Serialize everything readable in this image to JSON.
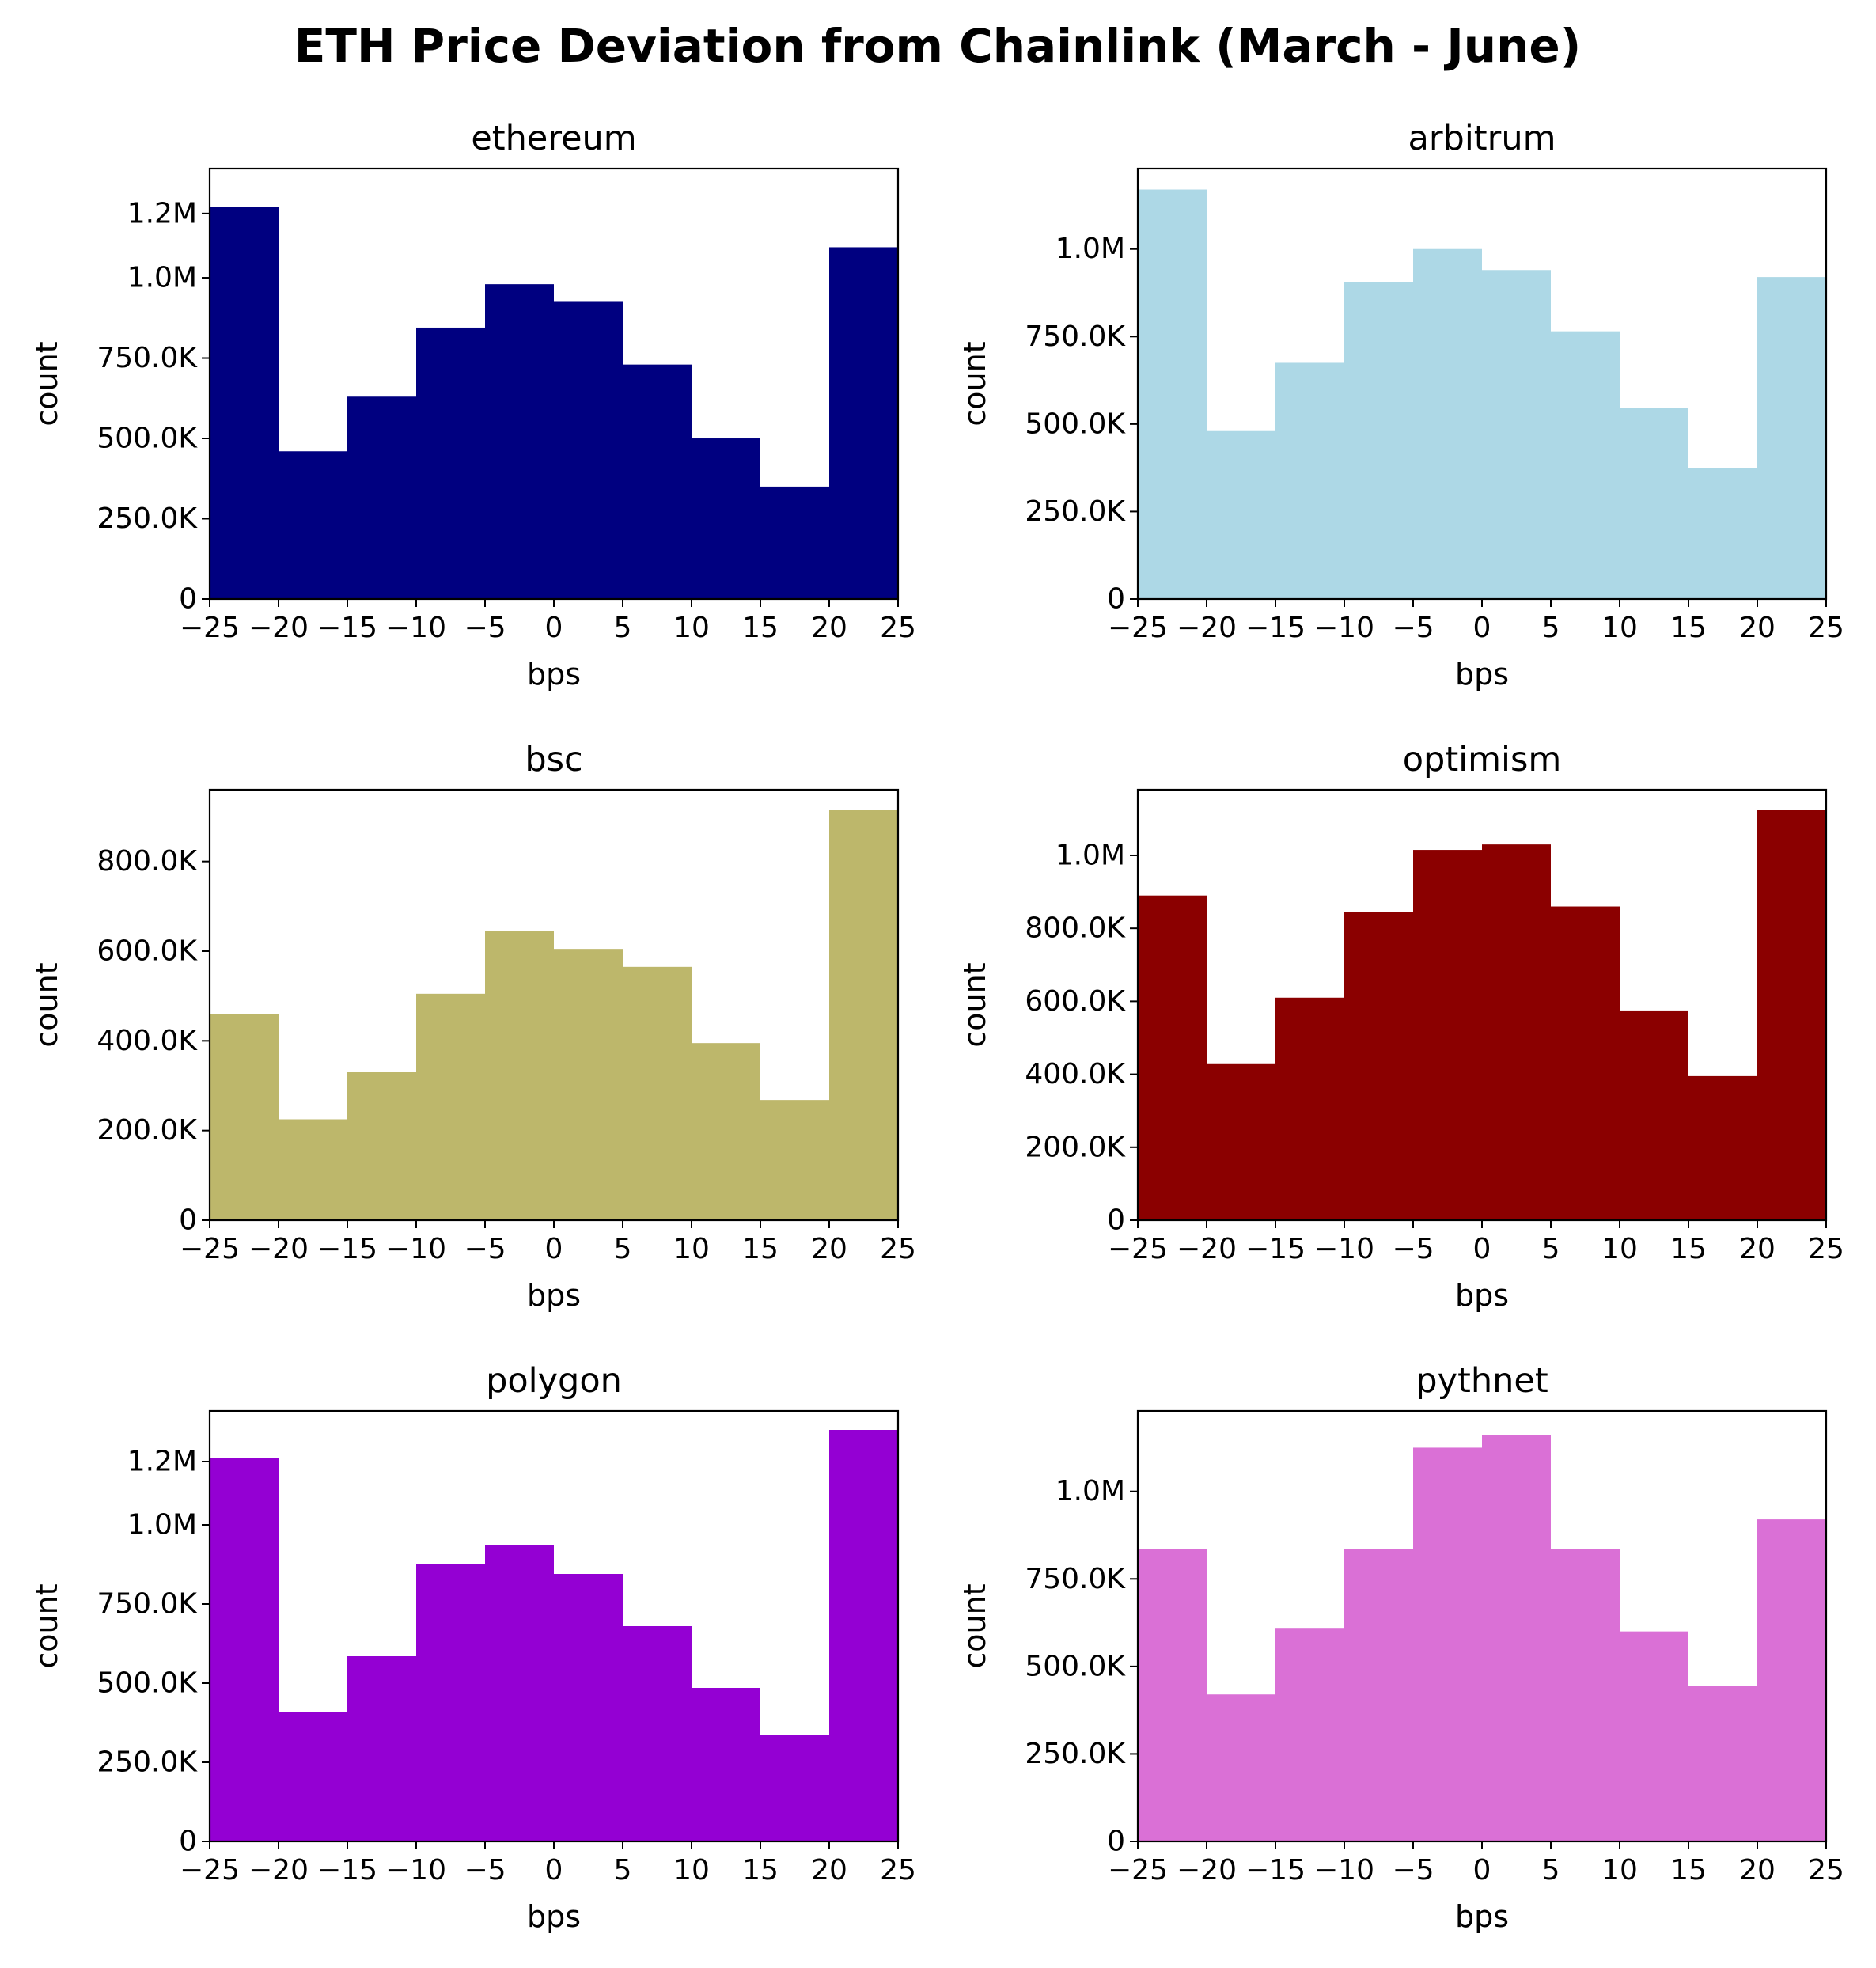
{
  "figure": {
    "title": "ETH Price Deviation from Chainlink (March - June)"
  },
  "chart_data": [
    {
      "type": "bar",
      "title": "ethereum",
      "xlabel": "bps",
      "ylabel": "count",
      "color": "#000080",
      "bin_edges": [
        -25,
        -20,
        -15,
        -10,
        -5,
        0,
        5,
        10,
        15,
        20,
        25
      ],
      "values": [
        1220000,
        460000,
        630000,
        845000,
        980000,
        925000,
        730000,
        500000,
        350000,
        1095000
      ],
      "xlim": [
        -25,
        25
      ],
      "ylim": [
        0,
        1340000
      ],
      "xticks": [
        -25,
        -20,
        -15,
        -10,
        -5,
        0,
        5,
        10,
        15,
        20,
        25
      ],
      "xtick_labels": [
        "−25",
        "−20",
        "−15",
        "−10",
        "−5",
        "0",
        "5",
        "10",
        "15",
        "20",
        "25"
      ],
      "yticks": [
        0,
        250000,
        500000,
        750000,
        1000000,
        1200000
      ],
      "ytick_labels": [
        "0",
        "250.0K",
        "500.0K",
        "750.0K",
        "1.0M",
        "1.2M"
      ]
    },
    {
      "type": "bar",
      "title": "arbitrum",
      "xlabel": "bps",
      "ylabel": "count",
      "color": "#add8e6",
      "bin_edges": [
        -25,
        -20,
        -15,
        -10,
        -5,
        0,
        5,
        10,
        15,
        20,
        25
      ],
      "values": [
        1170000,
        480000,
        675000,
        905000,
        1000000,
        940000,
        765000,
        545000,
        375000,
        920000
      ],
      "xlim": [
        -25,
        25
      ],
      "ylim": [
        0,
        1230000
      ],
      "xticks": [
        -25,
        -20,
        -15,
        -10,
        -5,
        0,
        5,
        10,
        15,
        20,
        25
      ],
      "xtick_labels": [
        "−25",
        "−20",
        "−15",
        "−10",
        "−5",
        "0",
        "5",
        "10",
        "15",
        "20",
        "25"
      ],
      "yticks": [
        0,
        250000,
        500000,
        750000,
        1000000
      ],
      "ytick_labels": [
        "0",
        "250.0K",
        "500.0K",
        "750.0K",
        "1.0M"
      ]
    },
    {
      "type": "bar",
      "title": "bsc",
      "xlabel": "bps",
      "ylabel": "count",
      "color": "#bdb76b",
      "bin_edges": [
        -25,
        -20,
        -15,
        -10,
        -5,
        0,
        5,
        10,
        15,
        20,
        25
      ],
      "values": [
        460000,
        225000,
        330000,
        505000,
        645000,
        605000,
        565000,
        395000,
        268000,
        915000
      ],
      "xlim": [
        -25,
        25
      ],
      "ylim": [
        0,
        960000
      ],
      "xticks": [
        -25,
        -20,
        -15,
        -10,
        -5,
        0,
        5,
        10,
        15,
        20,
        25
      ],
      "xtick_labels": [
        "−25",
        "−20",
        "−15",
        "−10",
        "−5",
        "0",
        "5",
        "10",
        "15",
        "20",
        "25"
      ],
      "yticks": [
        0,
        200000,
        400000,
        600000,
        800000
      ],
      "ytick_labels": [
        "0",
        "200.0K",
        "400.0K",
        "600.0K",
        "800.0K"
      ]
    },
    {
      "type": "bar",
      "title": "optimism",
      "xlabel": "bps",
      "ylabel": "count",
      "color": "#8b0000",
      "bin_edges": [
        -25,
        -20,
        -15,
        -10,
        -5,
        0,
        5,
        10,
        15,
        20,
        25
      ],
      "values": [
        890000,
        430000,
        610000,
        845000,
        1015000,
        1030000,
        860000,
        575000,
        395000,
        1125000
      ],
      "xlim": [
        -25,
        25
      ],
      "ylim": [
        0,
        1180000
      ],
      "xticks": [
        -25,
        -20,
        -15,
        -10,
        -5,
        0,
        5,
        10,
        15,
        20,
        25
      ],
      "xtick_labels": [
        "−25",
        "−20",
        "−15",
        "−10",
        "−5",
        "0",
        "5",
        "10",
        "15",
        "20",
        "25"
      ],
      "yticks": [
        0,
        200000,
        400000,
        600000,
        800000,
        1000000
      ],
      "ytick_labels": [
        "0",
        "200.0K",
        "400.0K",
        "600.0K",
        "800.0K",
        "1.0M"
      ]
    },
    {
      "type": "bar",
      "title": "polygon",
      "xlabel": "bps",
      "ylabel": "count",
      "color": "#9400d3",
      "bin_edges": [
        -25,
        -20,
        -15,
        -10,
        -5,
        0,
        5,
        10,
        15,
        20,
        25
      ],
      "values": [
        1210000,
        410000,
        585000,
        875000,
        935000,
        845000,
        680000,
        485000,
        335000,
        1300000
      ],
      "xlim": [
        -25,
        25
      ],
      "ylim": [
        0,
        1360000
      ],
      "xticks": [
        -25,
        -20,
        -15,
        -10,
        -5,
        0,
        5,
        10,
        15,
        20,
        25
      ],
      "xtick_labels": [
        "−25",
        "−20",
        "−15",
        "−10",
        "−5",
        "0",
        "5",
        "10",
        "15",
        "20",
        "25"
      ],
      "yticks": [
        0,
        250000,
        500000,
        750000,
        1000000,
        1200000
      ],
      "ytick_labels": [
        "0",
        "250.0K",
        "500.0K",
        "750.0K",
        "1.0M",
        "1.2M"
      ]
    },
    {
      "type": "bar",
      "title": "pythnet",
      "xlabel": "bps",
      "ylabel": "count",
      "color": "#da70d6",
      "bin_edges": [
        -25,
        -20,
        -15,
        -10,
        -5,
        0,
        5,
        10,
        15,
        20,
        25
      ],
      "values": [
        835000,
        420000,
        610000,
        835000,
        1125000,
        1160000,
        835000,
        600000,
        445000,
        920000
      ],
      "xlim": [
        -25,
        25
      ],
      "ylim": [
        0,
        1230000
      ],
      "xticks": [
        -25,
        -20,
        -15,
        -10,
        -5,
        0,
        5,
        10,
        15,
        20,
        25
      ],
      "xtick_labels": [
        "−25",
        "−20",
        "−15",
        "−10",
        "−5",
        "0",
        "5",
        "10",
        "15",
        "20",
        "25"
      ],
      "yticks": [
        0,
        250000,
        500000,
        750000,
        1000000
      ],
      "ytick_labels": [
        "0",
        "250.0K",
        "500.0K",
        "750.0K",
        "1.0M"
      ]
    }
  ]
}
